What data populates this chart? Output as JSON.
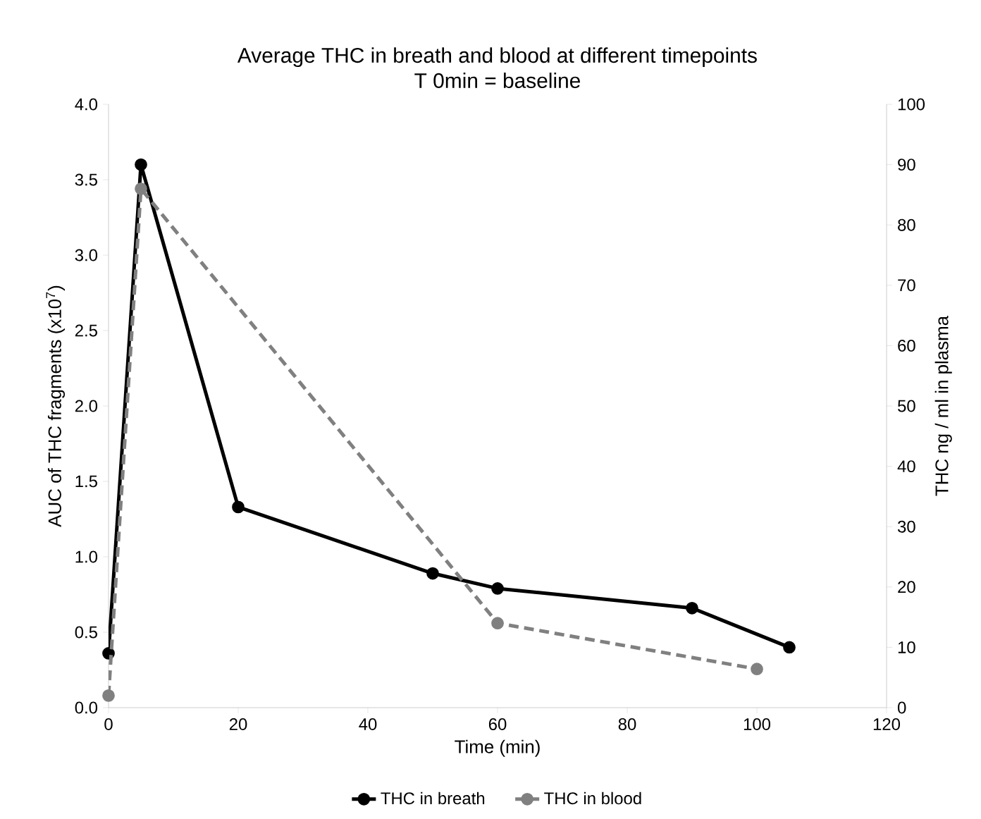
{
  "chart_data": {
    "type": "line",
    "title": "Average THC in breath and blood at different timepoints",
    "subtitle": "T 0min = baseline",
    "xlabel": "Time (min)",
    "ylabel": "AUC of THC fragments (x10$^{7}$)",
    "y2label": "THC ng / ml in plasma",
    "xlim": [
      0,
      120
    ],
    "xticks": [
      0,
      20,
      40,
      60,
      80,
      100,
      120
    ],
    "ylim": [
      0,
      4
    ],
    "yticks": [
      {
        "value": 0,
        "label": "0.0"
      },
      {
        "value": 0.5,
        "label": "0.5"
      },
      {
        "value": 1,
        "label": "1.0"
      },
      {
        "value": 1.5,
        "label": "1.5"
      },
      {
        "value": 2,
        "label": "2.0"
      },
      {
        "value": 2.5,
        "label": "2.5"
      },
      {
        "value": 3,
        "label": "3.0"
      },
      {
        "value": 3.5,
        "label": "3.5"
      },
      {
        "value": 4,
        "label": "4.0"
      }
    ],
    "y2lim": [
      0,
      100
    ],
    "y2ticks": [
      0,
      10,
      20,
      30,
      40,
      50,
      60,
      70,
      80,
      90,
      100
    ],
    "marker": "circle",
    "legend": "bottom",
    "grid": false,
    "series": [
      {
        "name": "THC in breath",
        "color": "#000000",
        "line_style": "solid",
        "x": [
          0,
          5,
          20,
          50,
          60,
          90,
          105
        ],
        "values": [
          0.36,
          3.6,
          1.33,
          0.89,
          0.79,
          0.66,
          0.4
        ]
      },
      {
        "name": "THC in blood",
        "color": "#808080",
        "line_style": "dashed",
        "axis": "y2",
        "x": [
          0,
          5,
          60,
          100
        ],
        "values": [
          2,
          86,
          14,
          6.4
        ]
      }
    ]
  }
}
